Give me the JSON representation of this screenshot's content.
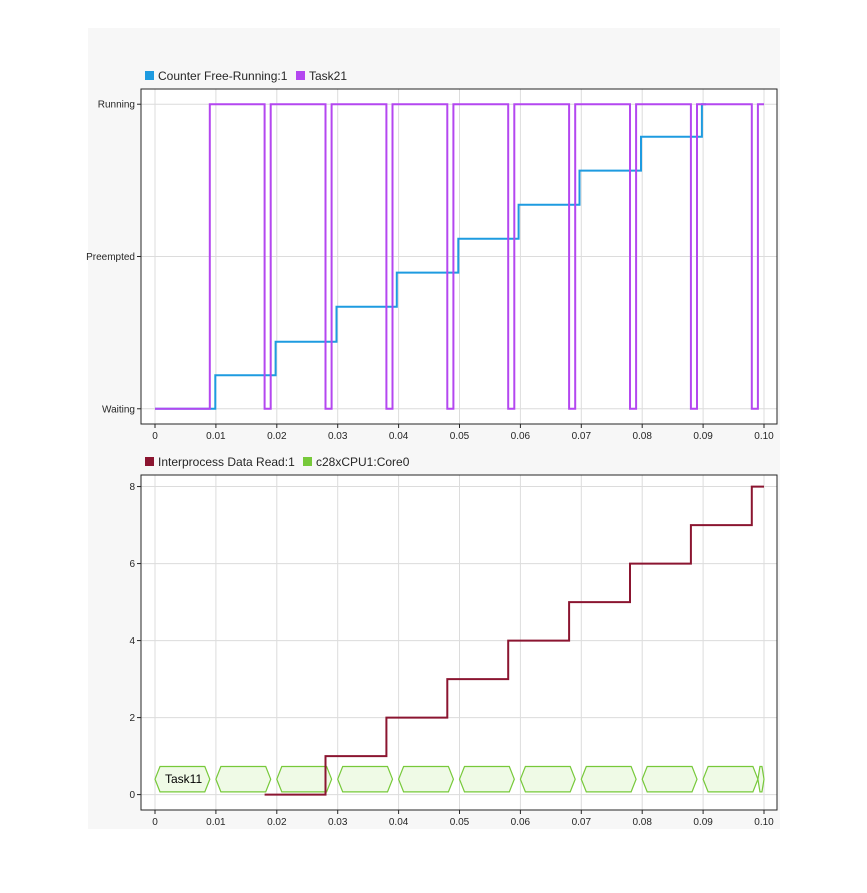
{
  "chart_data": [
    {
      "type": "line",
      "step": true,
      "legend": [
        {
          "name": "Counter Free-Running:1",
          "color": "#1e9be0"
        },
        {
          "name": "Task21",
          "color": "#b447f0"
        }
      ],
      "legend_position": "top-left",
      "grid": true,
      "xlim": [
        0,
        0.1
      ],
      "xticks": [
        {
          "v": 0,
          "label": "0"
        },
        {
          "v": 0.01,
          "label": "0.01"
        },
        {
          "v": 0.02,
          "label": "0.02"
        },
        {
          "v": 0.03,
          "label": "0.03"
        },
        {
          "v": 0.04,
          "label": "0.04"
        },
        {
          "v": 0.05,
          "label": "0.05"
        },
        {
          "v": 0.06,
          "label": "0.06"
        },
        {
          "v": 0.07,
          "label": "0.07"
        },
        {
          "v": 0.08,
          "label": "0.08"
        },
        {
          "v": 0.09,
          "label": "0.09"
        },
        {
          "v": 0.1,
          "label": "0.10"
        }
      ],
      "ylim": [
        -0.05,
        1.05
      ],
      "yticks": [
        {
          "v": 0,
          "label": "Waiting"
        },
        {
          "v": 0.5,
          "label": "Preempted"
        },
        {
          "v": 1,
          "label": "Running"
        }
      ],
      "series": [
        {
          "name": "Counter Free-Running:1",
          "color": "#1e9be0",
          "x": [
            0,
            0.0099,
            0.0099,
            0.0198,
            0.0198,
            0.0298,
            0.0298,
            0.0397,
            0.0397,
            0.0498,
            0.0498,
            0.0597,
            0.0597,
            0.0697,
            0.0697,
            0.0798,
            0.0798,
            0.0898,
            0.0898,
            0.0905
          ],
          "y": [
            0,
            0,
            0.11,
            0.11,
            0.22,
            0.22,
            0.335,
            0.335,
            0.447,
            0.447,
            0.558,
            0.558,
            0.67,
            0.67,
            0.782,
            0.782,
            0.893,
            0.893,
            1.0,
            1.0
          ]
        },
        {
          "name": "Task21",
          "color": "#b447f0",
          "x": [
            0,
            0.009,
            0.009,
            0.018,
            0.018,
            0.019,
            0.019,
            0.028,
            0.028,
            0.029,
            0.029,
            0.038,
            0.038,
            0.039,
            0.039,
            0.048,
            0.048,
            0.049,
            0.049,
            0.058,
            0.058,
            0.059,
            0.059,
            0.068,
            0.068,
            0.069,
            0.069,
            0.078,
            0.078,
            0.079,
            0.079,
            0.088,
            0.088,
            0.089,
            0.089,
            0.098,
            0.098,
            0.099,
            0.099,
            0.1
          ],
          "y": [
            0,
            0,
            1,
            1,
            0,
            0,
            1,
            1,
            0,
            0,
            1,
            1,
            0,
            0,
            1,
            1,
            0,
            0,
            1,
            1,
            0,
            0,
            1,
            1,
            0,
            0,
            1,
            1,
            0,
            0,
            1,
            1,
            0,
            0,
            1,
            1,
            0,
            0,
            1,
            1
          ]
        }
      ]
    },
    {
      "type": "line",
      "step": true,
      "legend": [
        {
          "name": "Interprocess Data Read:1",
          "color": "#8b1530"
        },
        {
          "name": "c28xCPU1:Core0",
          "color": "#77c93a"
        }
      ],
      "legend_position": "top-left",
      "grid": true,
      "xlim": [
        0,
        0.1
      ],
      "xticks": [
        {
          "v": 0,
          "label": "0"
        },
        {
          "v": 0.01,
          "label": "0.01"
        },
        {
          "v": 0.02,
          "label": "0.02"
        },
        {
          "v": 0.03,
          "label": "0.03"
        },
        {
          "v": 0.04,
          "label": "0.04"
        },
        {
          "v": 0.05,
          "label": "0.05"
        },
        {
          "v": 0.06,
          "label": "0.06"
        },
        {
          "v": 0.07,
          "label": "0.07"
        },
        {
          "v": 0.08,
          "label": "0.08"
        },
        {
          "v": 0.09,
          "label": "0.09"
        },
        {
          "v": 0.1,
          "label": "0.10"
        }
      ],
      "ylim": [
        -0.4,
        8.3
      ],
      "yticks": [
        {
          "v": 0,
          "label": "0"
        },
        {
          "v": 2,
          "label": "2"
        },
        {
          "v": 4,
          "label": "4"
        },
        {
          "v": 6,
          "label": "6"
        },
        {
          "v": 8,
          "label": "8"
        }
      ],
      "series": [
        {
          "name": "Interprocess Data Read:1",
          "color": "#8b1530",
          "x": [
            0.018,
            0.028,
            0.028,
            0.038,
            0.038,
            0.048,
            0.048,
            0.058,
            0.058,
            0.068,
            0.068,
            0.078,
            0.078,
            0.088,
            0.088,
            0.098,
            0.098,
            0.1
          ],
          "y": [
            0,
            0,
            1,
            1,
            2,
            2,
            3,
            3,
            4,
            4,
            5,
            5,
            6,
            6,
            7,
            7,
            8,
            8
          ]
        }
      ],
      "task_bars": {
        "name": "c28xCPU1:Core0",
        "color": "#77c93a",
        "fill": "#effae6",
        "y_center": 0.4,
        "half_height": 0.33,
        "first_label": "Task11",
        "segments": [
          [
            0.0,
            0.009
          ],
          [
            0.01,
            0.019
          ],
          [
            0.02,
            0.029
          ],
          [
            0.03,
            0.039
          ],
          [
            0.04,
            0.049
          ],
          [
            0.05,
            0.059
          ],
          [
            0.06,
            0.069
          ],
          [
            0.07,
            0.079
          ],
          [
            0.08,
            0.089
          ],
          [
            0.09,
            0.099
          ],
          [
            0.099,
            0.1
          ]
        ]
      }
    }
  ]
}
